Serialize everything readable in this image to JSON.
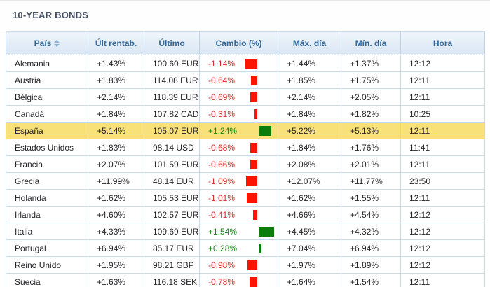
{
  "title": "10-YEAR BONDS",
  "colors": {
    "negative_text": "#dd2c2c",
    "positive_text": "#1b871b",
    "negative_bar": "#fb1502",
    "positive_bar": "#0a7d0a",
    "header_text": "#33689a",
    "highlight_row": "#f8e179"
  },
  "table": {
    "columns": {
      "pais": "País",
      "ult_rentab": "Últ rentab.",
      "ultimo": "Último",
      "cambio": "Cambio (%)",
      "max_dia": "Máx. día",
      "min_dia": "Mín. día",
      "hora": "Hora"
    },
    "rows": [
      {
        "pais": "Alemania",
        "ult_rentab": "+1.43%",
        "ultimo": "100.60 EUR",
        "cambio": "-1.14%",
        "cambio_value": -1.14,
        "max_dia": "+1.44%",
        "min_dia": "+1.37%",
        "hora": "12:12",
        "highlighted": false
      },
      {
        "pais": "Austria",
        "ult_rentab": "+1.83%",
        "ultimo": "114.08 EUR",
        "cambio": "-0.64%",
        "cambio_value": -0.64,
        "max_dia": "+1.85%",
        "min_dia": "+1.75%",
        "hora": "12:11",
        "highlighted": false
      },
      {
        "pais": "Bélgica",
        "ult_rentab": "+2.14%",
        "ultimo": "118.39 EUR",
        "cambio": "-0.69%",
        "cambio_value": -0.69,
        "max_dia": "+2.14%",
        "min_dia": "+2.05%",
        "hora": "12:11",
        "highlighted": false
      },
      {
        "pais": "Canadá",
        "ult_rentab": "+1.84%",
        "ultimo": "107.82 CAD",
        "cambio": "-0.31%",
        "cambio_value": -0.31,
        "max_dia": "+1.84%",
        "min_dia": "+1.82%",
        "hora": "10:25",
        "highlighted": false
      },
      {
        "pais": "España",
        "ult_rentab": "+5.14%",
        "ultimo": "105.07 EUR",
        "cambio": "+1.24%",
        "cambio_value": 1.24,
        "max_dia": "+5.22%",
        "min_dia": "+5.13%",
        "hora": "12:11",
        "highlighted": true
      },
      {
        "pais": "Estados Unidos",
        "ult_rentab": "+1.83%",
        "ultimo": "98.14 USD",
        "cambio": "-0.68%",
        "cambio_value": -0.68,
        "max_dia": "+1.84%",
        "min_dia": "+1.76%",
        "hora": "11:41",
        "highlighted": false
      },
      {
        "pais": "Francia",
        "ult_rentab": "+2.07%",
        "ultimo": "101.59 EUR",
        "cambio": "-0.66%",
        "cambio_value": -0.66,
        "max_dia": "+2.08%",
        "min_dia": "+2.01%",
        "hora": "12:11",
        "highlighted": false
      },
      {
        "pais": "Grecia",
        "ult_rentab": "+11.99%",
        "ultimo": "48.14 EUR",
        "cambio": "-1.09%",
        "cambio_value": -1.09,
        "max_dia": "+12.07%",
        "min_dia": "+11.77%",
        "hora": "23:50",
        "highlighted": false
      },
      {
        "pais": "Holanda",
        "ult_rentab": "+1.62%",
        "ultimo": "105.53 EUR",
        "cambio": "-1.01%",
        "cambio_value": -1.01,
        "max_dia": "+1.62%",
        "min_dia": "+1.55%",
        "hora": "12:11",
        "highlighted": false
      },
      {
        "pais": "Irlanda",
        "ult_rentab": "+4.60%",
        "ultimo": "102.57 EUR",
        "cambio": "-0.41%",
        "cambio_value": -0.41,
        "max_dia": "+4.66%",
        "min_dia": "+4.54%",
        "hora": "12:12",
        "highlighted": false
      },
      {
        "pais": "Italia",
        "ult_rentab": "+4.33%",
        "ultimo": "109.69 EUR",
        "cambio": "+1.54%",
        "cambio_value": 1.54,
        "max_dia": "+4.45%",
        "min_dia": "+4.32%",
        "hora": "12:12",
        "highlighted": false
      },
      {
        "pais": "Portugal",
        "ult_rentab": "+6.94%",
        "ultimo": "85.17 EUR",
        "cambio": "+0.28%",
        "cambio_value": 0.28,
        "max_dia": "+7.04%",
        "min_dia": "+6.94%",
        "hora": "12:12",
        "highlighted": false
      },
      {
        "pais": "Reino Unido",
        "ult_rentab": "+1.95%",
        "ultimo": "98.21 GBP",
        "cambio": "-0.98%",
        "cambio_value": -0.98,
        "max_dia": "+1.97%",
        "min_dia": "+1.89%",
        "hora": "12:12",
        "highlighted": false
      },
      {
        "pais": "Suecia",
        "ult_rentab": "+1.63%",
        "ultimo": "116.18 SEK",
        "cambio": "-0.78%",
        "cambio_value": -0.78,
        "max_dia": "+1.64%",
        "min_dia": "+1.54%",
        "hora": "12:11",
        "highlighted": false
      }
    ]
  },
  "chart_data": {
    "type": "bar",
    "title": "Cambio (%) per country",
    "categories": [
      "Alemania",
      "Austria",
      "Bélgica",
      "Canadá",
      "España",
      "Estados Unidos",
      "Francia",
      "Grecia",
      "Holanda",
      "Irlanda",
      "Italia",
      "Portugal",
      "Reino Unido",
      "Suecia"
    ],
    "values": [
      -1.14,
      -0.64,
      -0.69,
      -0.31,
      1.24,
      -0.68,
      -0.66,
      -1.09,
      -1.01,
      -0.41,
      1.54,
      0.28,
      -0.98,
      -0.78
    ],
    "orientation": "horizontal",
    "negative_color": "#fb1502",
    "positive_color": "#0a7d0a"
  }
}
